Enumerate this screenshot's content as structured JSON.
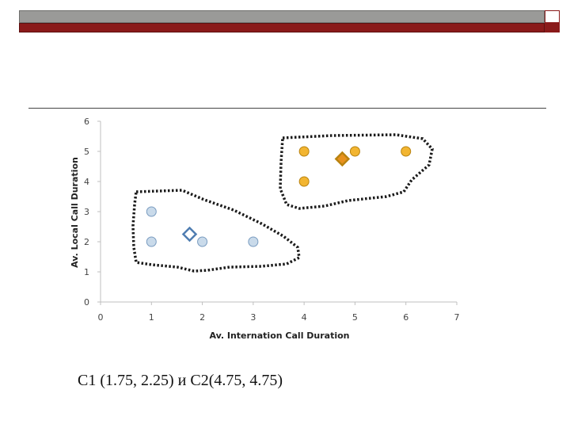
{
  "caption": "C1 (1.75, 2.25) и C2(4.75, 4.75)",
  "colors": {
    "cluster1": "#c9daea",
    "cluster1_stroke": "#7a9cc0",
    "centroid1": "#4f7db1",
    "cluster2": "#f2b531",
    "cluster2_stroke": "#b98310",
    "centroid2": "#e8921f",
    "axis": "#bfbfbf",
    "boundary": "#1a1a1a",
    "header_gray": "#9a9a98",
    "header_red": "#8a1a1a"
  },
  "chart_data": {
    "type": "scatter",
    "xlabel": "Av. Internation Call Duration",
    "ylabel": "Av. Local Call Duration",
    "xlim": [
      0,
      7
    ],
    "ylim": [
      0,
      6
    ],
    "x_ticks": [
      "0",
      "1",
      "2",
      "3",
      "4",
      "5",
      "6",
      "7"
    ],
    "y_ticks": [
      "0",
      "1",
      "2",
      "3",
      "4",
      "5",
      "6"
    ],
    "grid": false,
    "series": [
      {
        "points": [
          [
            1,
            3
          ],
          [
            1,
            2
          ],
          [
            2,
            2
          ],
          [
            3,
            2
          ]
        ]
      },
      {
        "points": [
          [
            4,
            5
          ],
          [
            5,
            5
          ],
          [
            6,
            5
          ],
          [
            4,
            4
          ]
        ]
      }
    ],
    "centroids": [
      [
        1.75,
        2.25
      ],
      [
        4.75,
        4.75
      ]
    ]
  }
}
